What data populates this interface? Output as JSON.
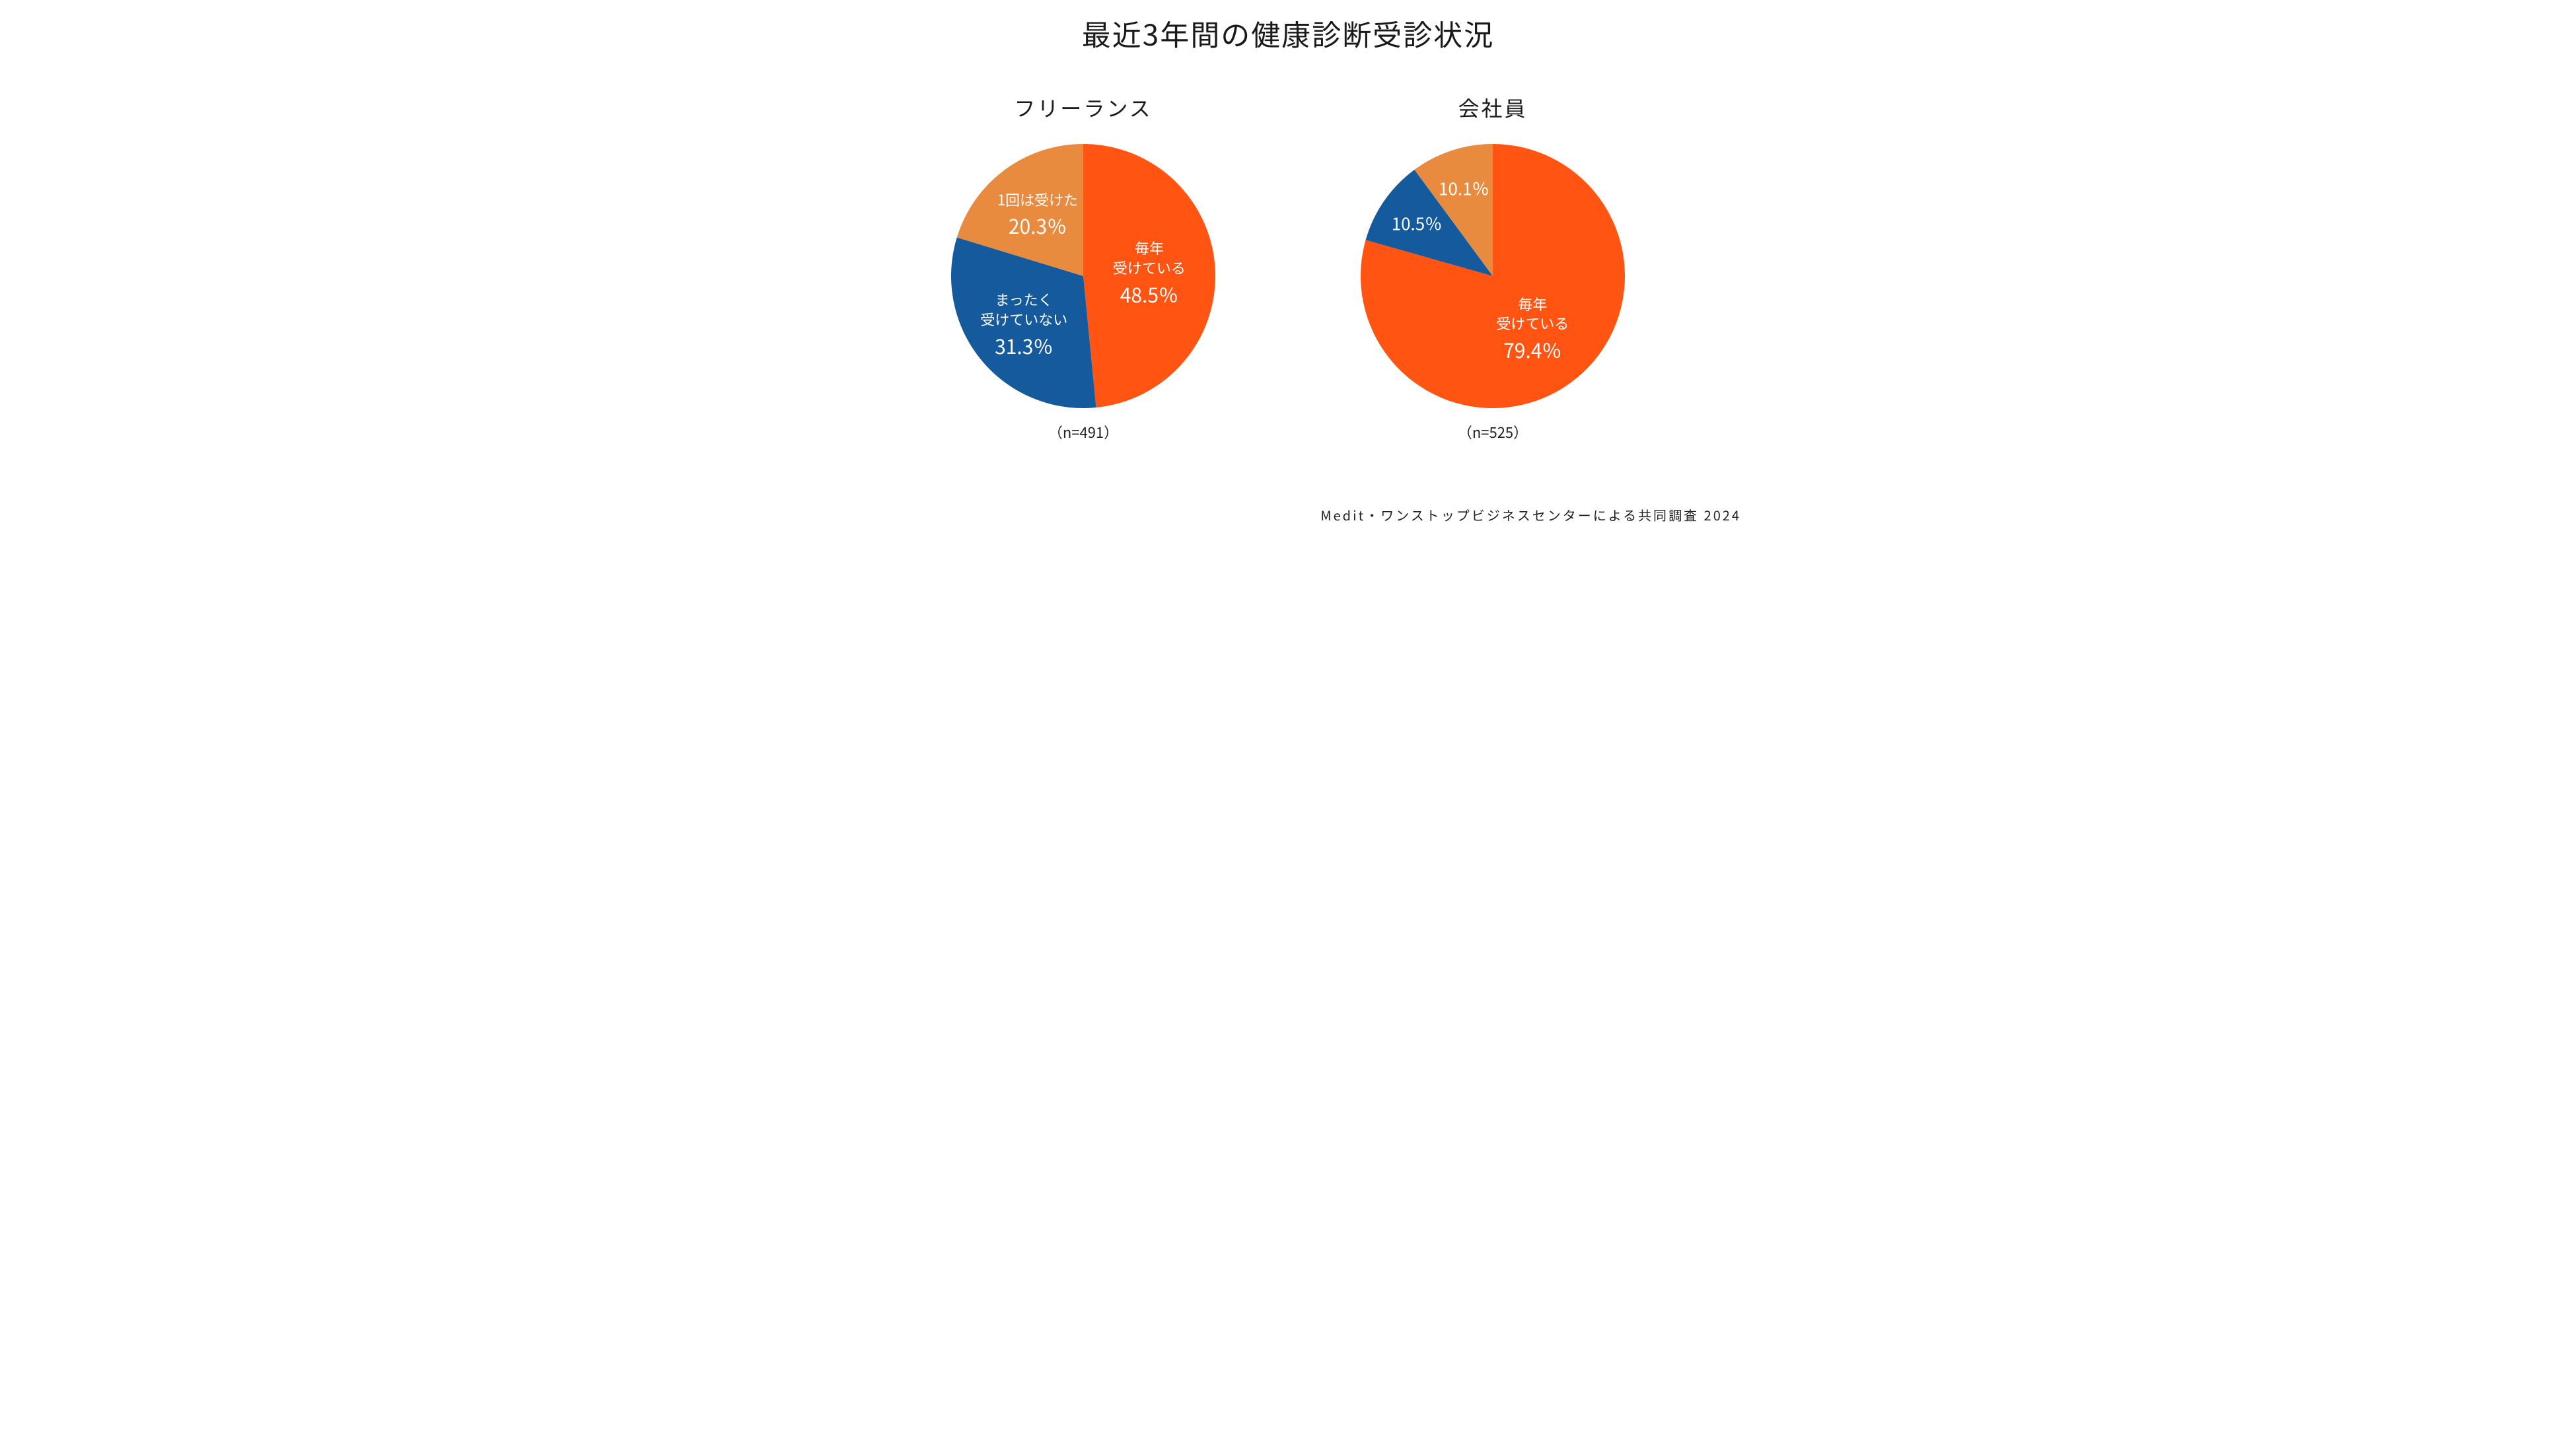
{
  "title": "最近3年間の健康診断受診状況",
  "attribution": "Medit・ワンストップビジネスセンターによる共同調査 2024",
  "charts": {
    "freelance": {
      "type": "pie",
      "subtitle": "フリーランス",
      "n_caption": "（n=491）",
      "radius": 200,
      "background_color": "#ffffff",
      "text_color": "#ffffff",
      "slices": [
        {
          "key": "every_year",
          "value": 48.5,
          "color": "#ff5412",
          "label_line1": "毎年",
          "label_line2": "受けている",
          "percent_text": "48.5％",
          "label_fontsize": 22,
          "pct_fontsize": 30
        },
        {
          "key": "never",
          "value": 31.3,
          "color": "#145a9c",
          "label_line1": "まったく",
          "label_line2": "受けていない",
          "percent_text": "31.3％",
          "label_fontsize": 22,
          "pct_fontsize": 30
        },
        {
          "key": "once",
          "value": 20.3,
          "color": "#e88b3e",
          "label_line1": "1回は受けた",
          "label_line2": "",
          "percent_text": "20.3％",
          "label_fontsize": 22,
          "pct_fontsize": 30
        }
      ]
    },
    "employee": {
      "type": "pie",
      "subtitle": "会社員",
      "n_caption": "（n=525）",
      "radius": 200,
      "background_color": "#ffffff",
      "text_color": "#ffffff",
      "slices": [
        {
          "key": "every_year",
          "value": 79.4,
          "color": "#ff5412",
          "label_line1": "毎年",
          "label_line2": "受けている",
          "percent_text": "79.4％",
          "label_fontsize": 22,
          "pct_fontsize": 30
        },
        {
          "key": "never",
          "value": 10.5,
          "color": "#145a9c",
          "label_line1": "",
          "label_line2": "",
          "percent_text": "10.5％",
          "label_fontsize": 22,
          "pct_fontsize": 26
        },
        {
          "key": "once",
          "value": 10.1,
          "color": "#e88b3e",
          "label_line1": "",
          "label_line2": "",
          "percent_text": "10.1％",
          "label_fontsize": 22,
          "pct_fontsize": 26
        }
      ]
    }
  }
}
